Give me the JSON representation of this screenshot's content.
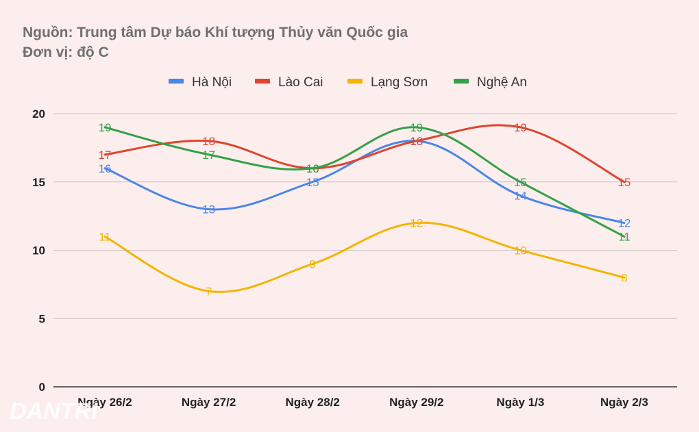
{
  "header": {
    "source": "Nguồn: Trung tâm Dự báo Khí tượng Thủy văn Quốc gia",
    "unit": "Đơn vị: độ C"
  },
  "watermark": "DANTRI",
  "chart_data": {
    "type": "line",
    "categories": [
      "Ngày 26/2",
      "Ngày 27/2",
      "Ngày 28/2",
      "Ngày 29/2",
      "Ngày 1/3",
      "Ngày 2/3"
    ],
    "series": [
      {
        "name": "Hà Nội",
        "color": "#4a86e8",
        "values": [
          16,
          13,
          15,
          18,
          14,
          12
        ]
      },
      {
        "name": "Lào Cai",
        "color": "#e0442e",
        "values": [
          17,
          18,
          16,
          18,
          19,
          15
        ]
      },
      {
        "name": "Lạng Sơn",
        "color": "#f4b400",
        "values": [
          11,
          7,
          9,
          12,
          10,
          8
        ]
      },
      {
        "name": "Nghệ An",
        "color": "#34a146",
        "values": [
          19,
          17,
          16,
          19,
          15,
          11
        ]
      }
    ],
    "yticks": [
      0,
      5,
      10,
      15,
      20
    ],
    "ylim": [
      0,
      20
    ],
    "grid": true,
    "legend": "top-center",
    "smooth": true,
    "data_labels": true
  }
}
